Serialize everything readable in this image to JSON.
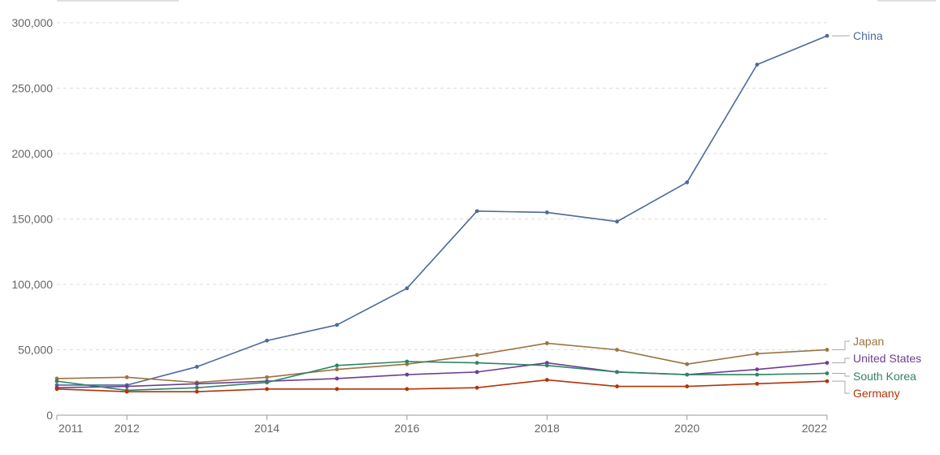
{
  "chart_data": {
    "type": "line",
    "title": "",
    "xlabel": "",
    "ylabel": "",
    "x": [
      2011,
      2012,
      2013,
      2014,
      2015,
      2016,
      2017,
      2018,
      2019,
      2020,
      2021,
      2022
    ],
    "xlim": [
      2011,
      2022
    ],
    "ylim": [
      0,
      300000
    ],
    "x_ticks": [
      2011,
      2012,
      2014,
      2016,
      2018,
      2020,
      2022
    ],
    "x_tick_labels": [
      "2011",
      "2012",
      "2014",
      "2016",
      "2018",
      "2020",
      "2022"
    ],
    "y_ticks": [
      0,
      50000,
      100000,
      150000,
      200000,
      250000,
      300000
    ],
    "y_tick_labels": [
      "0",
      "50,000",
      "100,000",
      "150,000",
      "200,000",
      "250,000",
      "300,000"
    ],
    "grid": true,
    "legend_placement": "right-end-labels",
    "series": [
      {
        "name": "China",
        "color": "#4c6a9c",
        "values": [
          23000,
          23000,
          37000,
          57000,
          69000,
          97000,
          156000,
          155000,
          148000,
          178000,
          268000,
          290000
        ]
      },
      {
        "name": "Japan",
        "color": "#9a7440",
        "values": [
          28000,
          29000,
          25000,
          29000,
          35000,
          39000,
          46000,
          55000,
          50000,
          39000,
          47000,
          50000
        ]
      },
      {
        "name": "United States",
        "color": "#6d3e91",
        "values": [
          21000,
          22000,
          24000,
          26000,
          28000,
          31000,
          33000,
          40000,
          33000,
          31000,
          35000,
          40000
        ]
      },
      {
        "name": "South Korea",
        "color": "#2f8465",
        "values": [
          26000,
          19000,
          21000,
          25000,
          38000,
          41000,
          40000,
          38000,
          33000,
          31000,
          31000,
          32000
        ]
      },
      {
        "name": "Germany",
        "color": "#b13507",
        "values": [
          20000,
          18000,
          18000,
          20000,
          20000,
          20000,
          21000,
          27000,
          22000,
          22000,
          24000,
          26000
        ]
      }
    ]
  }
}
